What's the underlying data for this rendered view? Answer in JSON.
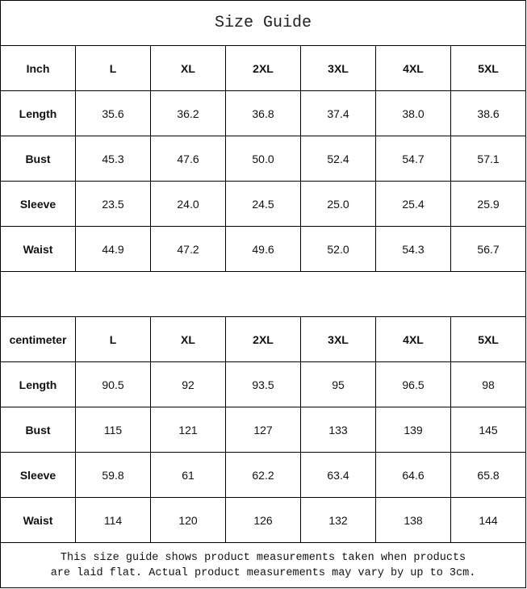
{
  "title": "Size Guide",
  "sizes": [
    "L",
    "XL",
    "2XL",
    "3XL",
    "4XL",
    "5XL"
  ],
  "tables": [
    {
      "unit": "Inch",
      "rows": [
        {
          "label": "Length",
          "values": [
            "35.6",
            "36.2",
            "36.8",
            "37.4",
            "38.0",
            "38.6"
          ]
        },
        {
          "label": "Bust",
          "values": [
            "45.3",
            "47.6",
            "50.0",
            "52.4",
            "54.7",
            "57.1"
          ]
        },
        {
          "label": "Sleeve",
          "values": [
            "23.5",
            "24.0",
            "24.5",
            "25.0",
            "25.4",
            "25.9"
          ]
        },
        {
          "label": "Waist",
          "values": [
            "44.9",
            "47.2",
            "49.6",
            "52.0",
            "54.3",
            "56.7"
          ]
        }
      ]
    },
    {
      "unit": "centimeter",
      "rows": [
        {
          "label": "Length",
          "values": [
            "90.5",
            "92",
            "93.5",
            "95",
            "96.5",
            "98"
          ]
        },
        {
          "label": "Bust",
          "values": [
            "115",
            "121",
            "127",
            "133",
            "139",
            "145"
          ]
        },
        {
          "label": "Sleeve",
          "values": [
            "59.8",
            "61",
            "62.2",
            "63.4",
            "64.6",
            "65.8"
          ]
        },
        {
          "label": "Waist",
          "values": [
            "114",
            "120",
            "126",
            "132",
            "138",
            "144"
          ]
        }
      ]
    }
  ],
  "note": {
    "line1": "This size guide shows product measurements taken when products",
    "line2": "are laid flat. Actual product measurements may vary by up to 3cm."
  }
}
